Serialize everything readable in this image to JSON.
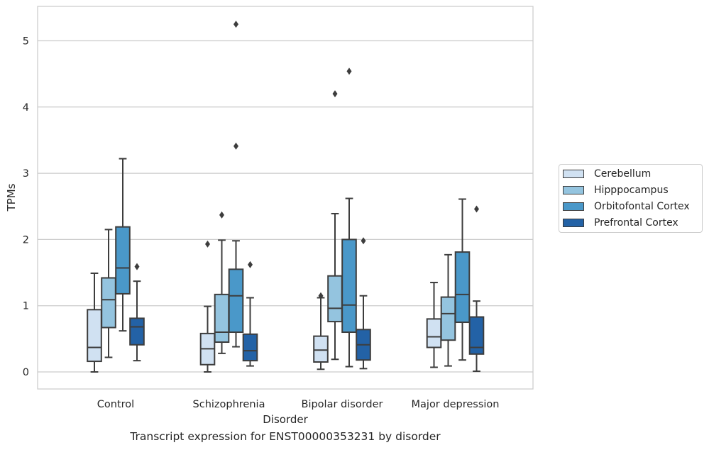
{
  "chart_data": {
    "type": "box",
    "ylabel": "TPMs",
    "xlabel": "Disorder",
    "caption": "Transcript expression for ENST00000353231 by disorder",
    "ylim": [
      -0.25,
      5.5
    ],
    "yticks": [
      0,
      1,
      2,
      3,
      4,
      5
    ],
    "grid": true,
    "legend_position": "right",
    "categories": [
      "Control",
      "Schizophrenia",
      "Bipolar disorder",
      "Major depression"
    ],
    "series": [
      {
        "name": "Cerebellum",
        "color": "#d0e1f2",
        "boxes": [
          {
            "min": 0.0,
            "q1": 0.16,
            "median": 0.37,
            "q3": 0.94,
            "max": 1.49,
            "outliers": []
          },
          {
            "min": 0.0,
            "q1": 0.11,
            "median": 0.35,
            "q3": 0.58,
            "max": 0.99,
            "outliers": [
              1.93
            ]
          },
          {
            "min": 0.04,
            "q1": 0.15,
            "median": 0.33,
            "q3": 0.54,
            "max": 1.12,
            "outliers": [
              1.15
            ]
          },
          {
            "min": 0.07,
            "q1": 0.37,
            "median": 0.53,
            "q3": 0.8,
            "max": 1.35,
            "outliers": []
          }
        ]
      },
      {
        "name": "Hipppocampus",
        "color": "#94c4df",
        "boxes": [
          {
            "min": 0.22,
            "q1": 0.67,
            "median": 1.09,
            "q3": 1.42,
            "max": 2.15,
            "outliers": []
          },
          {
            "min": 0.28,
            "q1": 0.45,
            "median": 0.6,
            "q3": 1.17,
            "max": 1.99,
            "outliers": [
              2.37
            ]
          },
          {
            "min": 0.19,
            "q1": 0.76,
            "median": 0.96,
            "q3": 1.45,
            "max": 2.39,
            "outliers": [
              4.2
            ]
          },
          {
            "min": 0.09,
            "q1": 0.48,
            "median": 0.88,
            "q3": 1.13,
            "max": 1.77,
            "outliers": []
          }
        ]
      },
      {
        "name": "Orbitofontal Cortex",
        "color": "#4a98c9",
        "boxes": [
          {
            "min": 0.62,
            "q1": 1.18,
            "median": 1.57,
            "q3": 2.19,
            "max": 3.22,
            "outliers": []
          },
          {
            "min": 0.38,
            "q1": 0.6,
            "median": 1.15,
            "q3": 1.55,
            "max": 1.98,
            "outliers": [
              3.41,
              5.25
            ]
          },
          {
            "min": 0.08,
            "q1": 0.6,
            "median": 1.01,
            "q3": 2.0,
            "max": 2.62,
            "outliers": [
              4.54
            ]
          },
          {
            "min": 0.18,
            "q1": 0.75,
            "median": 1.17,
            "q3": 1.81,
            "max": 2.61,
            "outliers": []
          }
        ]
      },
      {
        "name": "Prefrontal Cortex",
        "color": "#2362a6",
        "boxes": [
          {
            "min": 0.17,
            "q1": 0.41,
            "median": 0.68,
            "q3": 0.81,
            "max": 1.37,
            "outliers": [
              1.59
            ]
          },
          {
            "min": 0.09,
            "q1": 0.17,
            "median": 0.32,
            "q3": 0.57,
            "max": 1.12,
            "outliers": [
              1.62
            ]
          },
          {
            "min": 0.05,
            "q1": 0.18,
            "median": 0.41,
            "q3": 0.64,
            "max": 1.15,
            "outliers": [
              1.98
            ]
          },
          {
            "min": 0.01,
            "q1": 0.27,
            "median": 0.37,
            "q3": 0.83,
            "max": 1.07,
            "outliers": [
              2.46
            ]
          }
        ]
      }
    ]
  }
}
